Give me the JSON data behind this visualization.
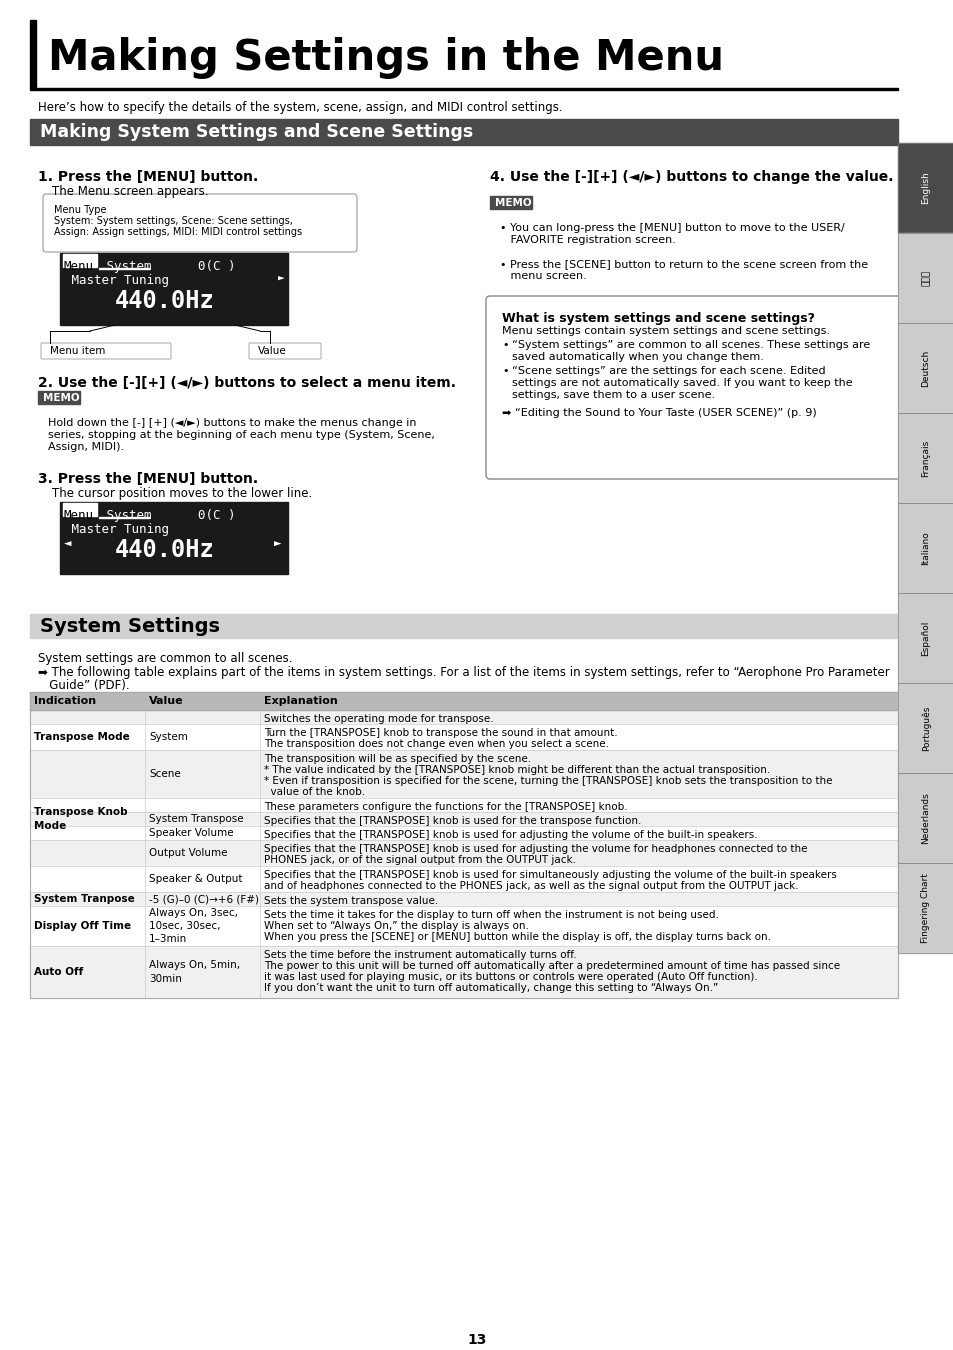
{
  "page_title": "Making Settings in the Menu",
  "subtitle": "Here’s how to specify the details of the system, scene, assign, and MIDI control settings.",
  "section1_title": "Making System Settings and Scene Settings",
  "step1_title": "1. Press the [MENU] button.",
  "step1_text": "The Menu screen appears.",
  "menu_box_text": [
    "Menu Type",
    "System: System settings, Scene: Scene settings,",
    "Assign: Assign settings, MIDI: MIDI control settings"
  ],
  "lcd_label1": "Menu item",
  "lcd_label2": "Value",
  "step2_title": "2. Use the [-][+] (◄/►) buttons to select a menu item.",
  "step2_memo_lines": [
    "Hold down the [-] [+] (◄/►) buttons to make the menus change in",
    "series, stopping at the beginning of each menu type (System, Scene,",
    "Assign, MIDI)."
  ],
  "step4_title": "4. Use the [-][+] (◄/►) buttons to change the value.",
  "step4_memo_lines": [
    "• You can long-press the [MENU] button to move to the USER/",
    "   FAVORITE registration screen.",
    "",
    "• Press the [SCENE] button to return to the scene screen from the",
    "   menu screen."
  ],
  "info_box_title": "What is system settings and scene settings?",
  "info_box_text1": "Menu settings contain system settings and scene settings.",
  "info_box_b1_lines": [
    "“System settings” are common to all scenes. These settings are",
    "saved automatically when you change them."
  ],
  "info_box_b2_lines": [
    "“Scene settings” are the settings for each scene. Edited",
    "settings are not automatically saved. If you want to keep the",
    "settings, save them to a user scene."
  ],
  "info_box_arrow": "➡ “Editing the Sound to Your Taste (USER SCENE)” (p. 9)",
  "step3_title": "3. Press the [MENU] button.",
  "step3_text": "The cursor position moves to the lower line.",
  "section2_title": "System Settings",
  "section2_sub": "System settings are common to all scenes.",
  "section2_arrow_lines": [
    "➡ The following table explains part of the items in system settings. For a list of the items in system settings, refer to “Aerophone Pro Parameter",
    "   Guide” (PDF)."
  ],
  "table_headers": [
    "Indication",
    "Value",
    "Explanation"
  ],
  "rows": [
    {
      "ind": "",
      "val": "",
      "expl": [
        "Switches the operating mode for transpose."
      ],
      "rh": 14,
      "alt": false
    },
    {
      "ind": "Transpose Mode",
      "val": "System",
      "expl": [
        "Turn the [TRANSPOSE] knob to transpose the sound in that amount.",
        "The transposition does not change even when you select a scene."
      ],
      "rh": 26,
      "alt": true
    },
    {
      "ind": "",
      "val": "Scene",
      "expl": [
        "The transposition will be as specified by the scene.",
        "* The value indicated by the [TRANSPOSE] knob might be different than the actual transposition.",
        "* Even if transposition is specified for the scene, turning the [TRANSPOSE] knob sets the transposition to the",
        "  value of the knob."
      ],
      "rh": 48,
      "alt": false
    },
    {
      "ind": "",
      "val": "",
      "expl": [
        "These parameters configure the functions for the [TRANSPOSE] knob."
      ],
      "rh": 14,
      "alt": true
    },
    {
      "ind": "Transpose Knob\nMode",
      "val": "System Transpose",
      "expl": [
        "Specifies that the [TRANSPOSE] knob is used for the transpose function."
      ],
      "rh": 14,
      "alt": false
    },
    {
      "ind": "",
      "val": "Speaker Volume",
      "expl": [
        "Specifies that the [TRANSPOSE] knob is used for adjusting the volume of the built-in speakers."
      ],
      "rh": 14,
      "alt": true
    },
    {
      "ind": "",
      "val": "Output Volume",
      "expl": [
        "Specifies that the [TRANSPOSE] knob is used for adjusting the volume for headphones connected to the",
        "PHONES jack, or of the signal output from the OUTPUT jack."
      ],
      "rh": 26,
      "alt": false
    },
    {
      "ind": "",
      "val": "Speaker & Output",
      "expl": [
        "Specifies that the [TRANSPOSE] knob is used for simultaneously adjusting the volume of the built-in speakers",
        "and of headphones connected to the PHONES jack, as well as the signal output from the OUTPUT jack."
      ],
      "rh": 26,
      "alt": true
    },
    {
      "ind": "System Tranpose",
      "val": "-5 (G)–0 (C)→+6 (F#)",
      "expl": [
        "Sets the system transpose value."
      ],
      "rh": 14,
      "alt": false
    },
    {
      "ind": "Display Off Time",
      "val": "Always On, 3sec,\n10sec, 30sec,\n1–3min",
      "expl": [
        "Sets the time it takes for the display to turn off when the instrument is not being used.",
        "When set to “Always On,” the display is always on.",
        "When you press the [SCENE] or [MENU] button while the display is off, the display turns back on."
      ],
      "rh": 40,
      "alt": true
    },
    {
      "ind": "Auto Off",
      "val": "Always On, 5min,\n30min",
      "expl": [
        "Sets the time before the instrument automatically turns off.",
        "The power to this unit will be turned off automatically after a predetermined amount of time has passed since",
        "it was last used for playing music, or its buttons or controls were operated (Auto Off function).",
        "If you don’t want the unit to turn off automatically, change this setting to “Always On.”"
      ],
      "rh": 52,
      "alt": false
    }
  ],
  "tab_labels": [
    "English",
    "日本語",
    "Deutsch",
    "Français",
    "Italiano",
    "Español",
    "Português",
    "Nederlands",
    "Fingering Chart"
  ],
  "tab_colors": [
    "#4a4a4a",
    "#cccccc",
    "#cccccc",
    "#cccccc",
    "#cccccc",
    "#cccccc",
    "#cccccc",
    "#cccccc",
    "#cccccc"
  ],
  "tab_text_colors": [
    "white",
    "black",
    "black",
    "black",
    "black",
    "black",
    "black",
    "black",
    "black"
  ],
  "page_number": "13",
  "bg_color": "#ffffff",
  "title_bar_color": "#4a4a4a",
  "section_bg_color": "#d0d0d0",
  "table_header_color": "#b8b8b8",
  "table_alt_color": "#f0f0f0",
  "memo_bg_color": "#4a4a4a",
  "lcd_bg": "#1a1a1a"
}
